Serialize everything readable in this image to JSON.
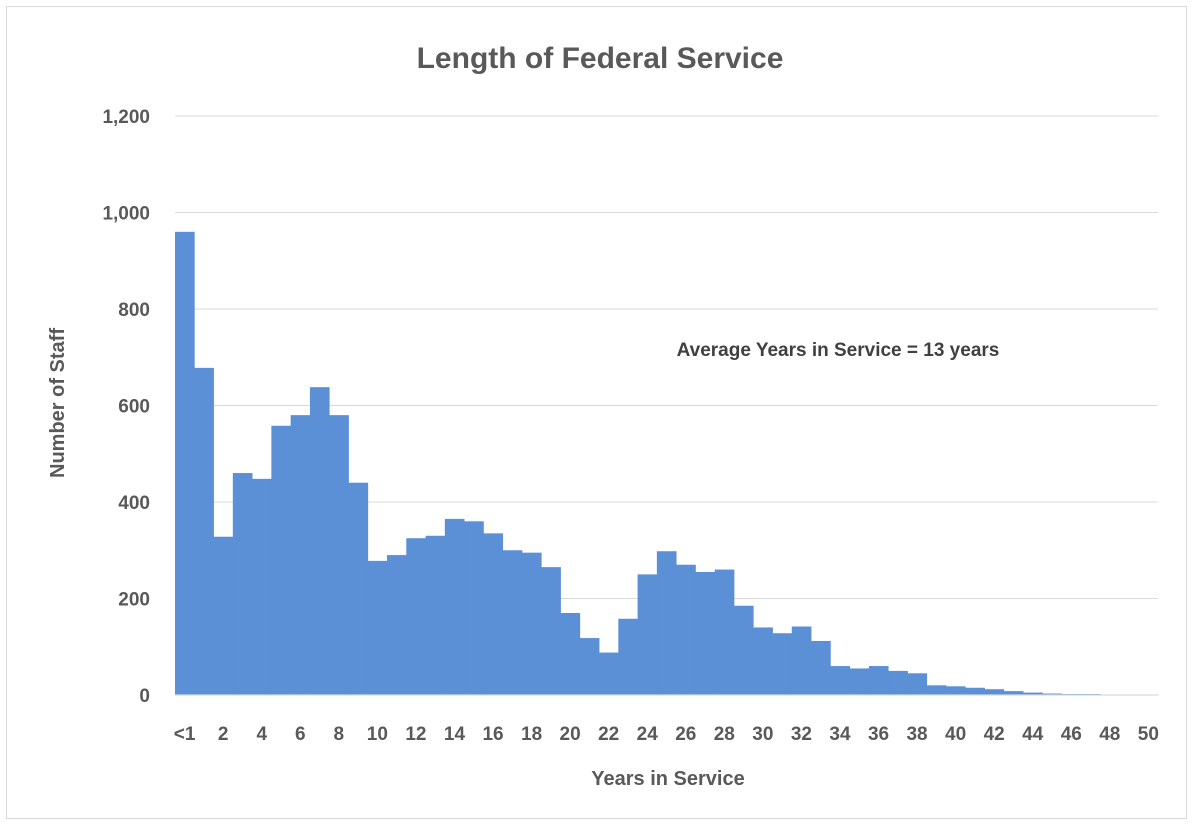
{
  "chart_data": {
    "type": "bar",
    "title": "Length of Federal Service",
    "xlabel": "Years in Service",
    "ylabel": "Number of Staff",
    "annotation": "Average Years in Service = 13 years",
    "ylim": [
      0,
      1200
    ],
    "yticks": [
      0,
      200,
      400,
      600,
      800,
      1000,
      1200
    ],
    "ytick_labels": [
      "0",
      "200",
      "400",
      "600",
      "800",
      "1,000",
      "1,200"
    ],
    "grid": true,
    "legend": "none",
    "bar_color": "#5b8fd6",
    "categories": [
      "<1",
      "1",
      "2",
      "3",
      "4",
      "5",
      "6",
      "7",
      "8",
      "9",
      "10",
      "11",
      "12",
      "13",
      "14",
      "15",
      "16",
      "17",
      "18",
      "19",
      "20",
      "21",
      "22",
      "23",
      "24",
      "25",
      "26",
      "27",
      "28",
      "29",
      "30",
      "31",
      "32",
      "33",
      "34",
      "35",
      "36",
      "37",
      "38",
      "39",
      "40",
      "41",
      "42",
      "43",
      "44",
      "45",
      "46",
      "47",
      "48",
      "49",
      "50"
    ],
    "xtick_labels": [
      "<1",
      "2",
      "4",
      "6",
      "8",
      "10",
      "12",
      "14",
      "16",
      "18",
      "20",
      "22",
      "24",
      "26",
      "28",
      "30",
      "32",
      "34",
      "36",
      "38",
      "40",
      "42",
      "44",
      "46",
      "48",
      "50"
    ],
    "values": [
      960,
      678,
      328,
      460,
      448,
      558,
      580,
      638,
      580,
      440,
      278,
      290,
      325,
      330,
      365,
      360,
      335,
      300,
      295,
      265,
      170,
      118,
      88,
      158,
      250,
      298,
      270,
      255,
      260,
      185,
      140,
      128,
      142,
      112,
      60,
      55,
      60,
      50,
      45,
      20,
      18,
      15,
      12,
      8,
      5,
      3,
      2,
      2,
      1,
      1,
      1
    ]
  }
}
